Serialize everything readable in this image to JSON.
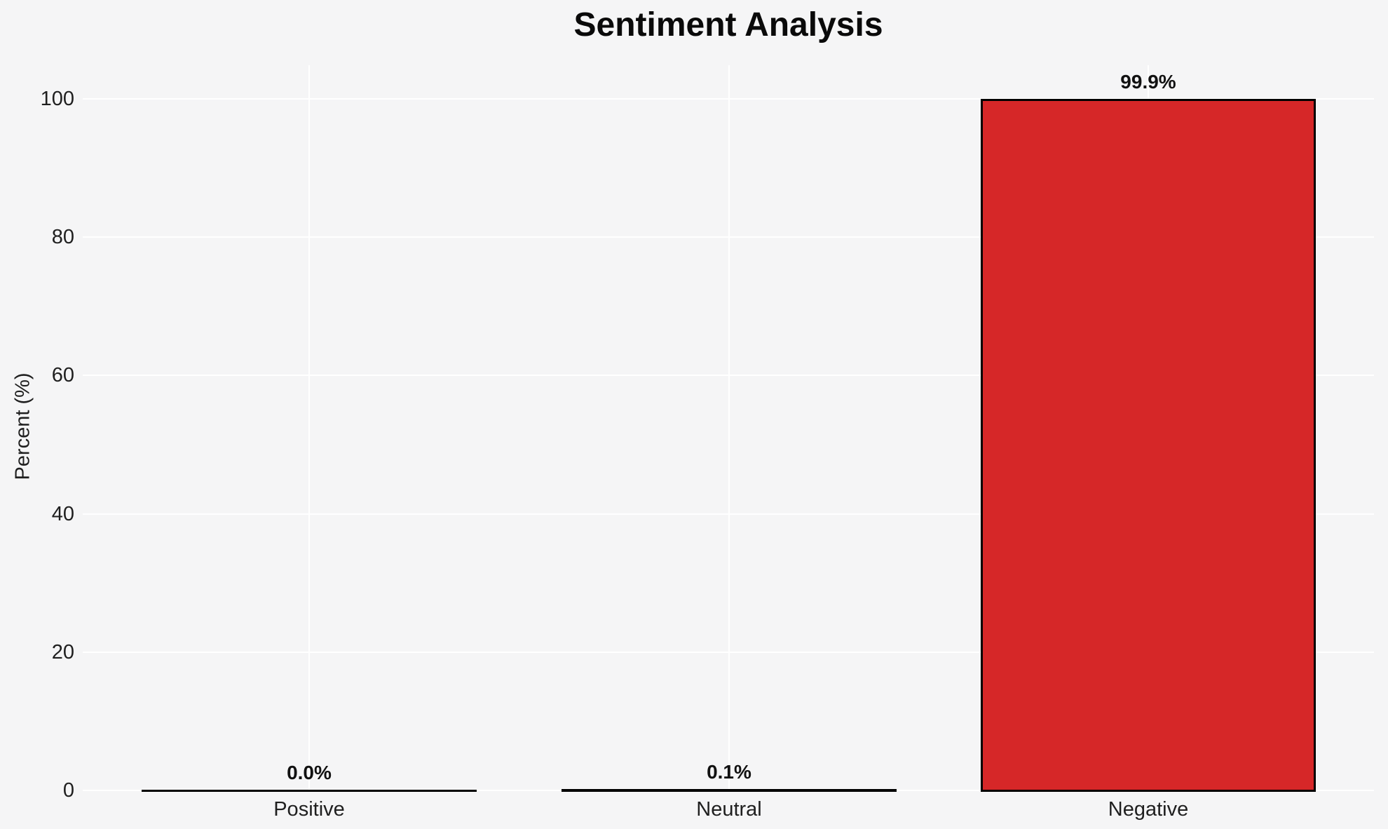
{
  "chart_data": {
    "type": "bar",
    "title": "Sentiment Analysis",
    "ylabel": "Percent (%)",
    "xlabel": "",
    "categories": [
      "Positive",
      "Neutral",
      "Negative"
    ],
    "values": [
      0.0,
      0.1,
      99.9
    ],
    "value_labels": [
      "0.0%",
      "0.1%",
      "99.9%"
    ],
    "yticks": [
      0,
      20,
      40,
      60,
      80,
      100
    ],
    "ylim": [
      0,
      104.9
    ],
    "grid": "on",
    "legend": "none",
    "colors": {
      "bar_fill": "#d62728",
      "bar_edge": "#000000",
      "background": "#f5f5f6",
      "gridline": "#ffffff",
      "tick_text": "#1f1f1f",
      "title_text": "#0a0a0a"
    }
  }
}
